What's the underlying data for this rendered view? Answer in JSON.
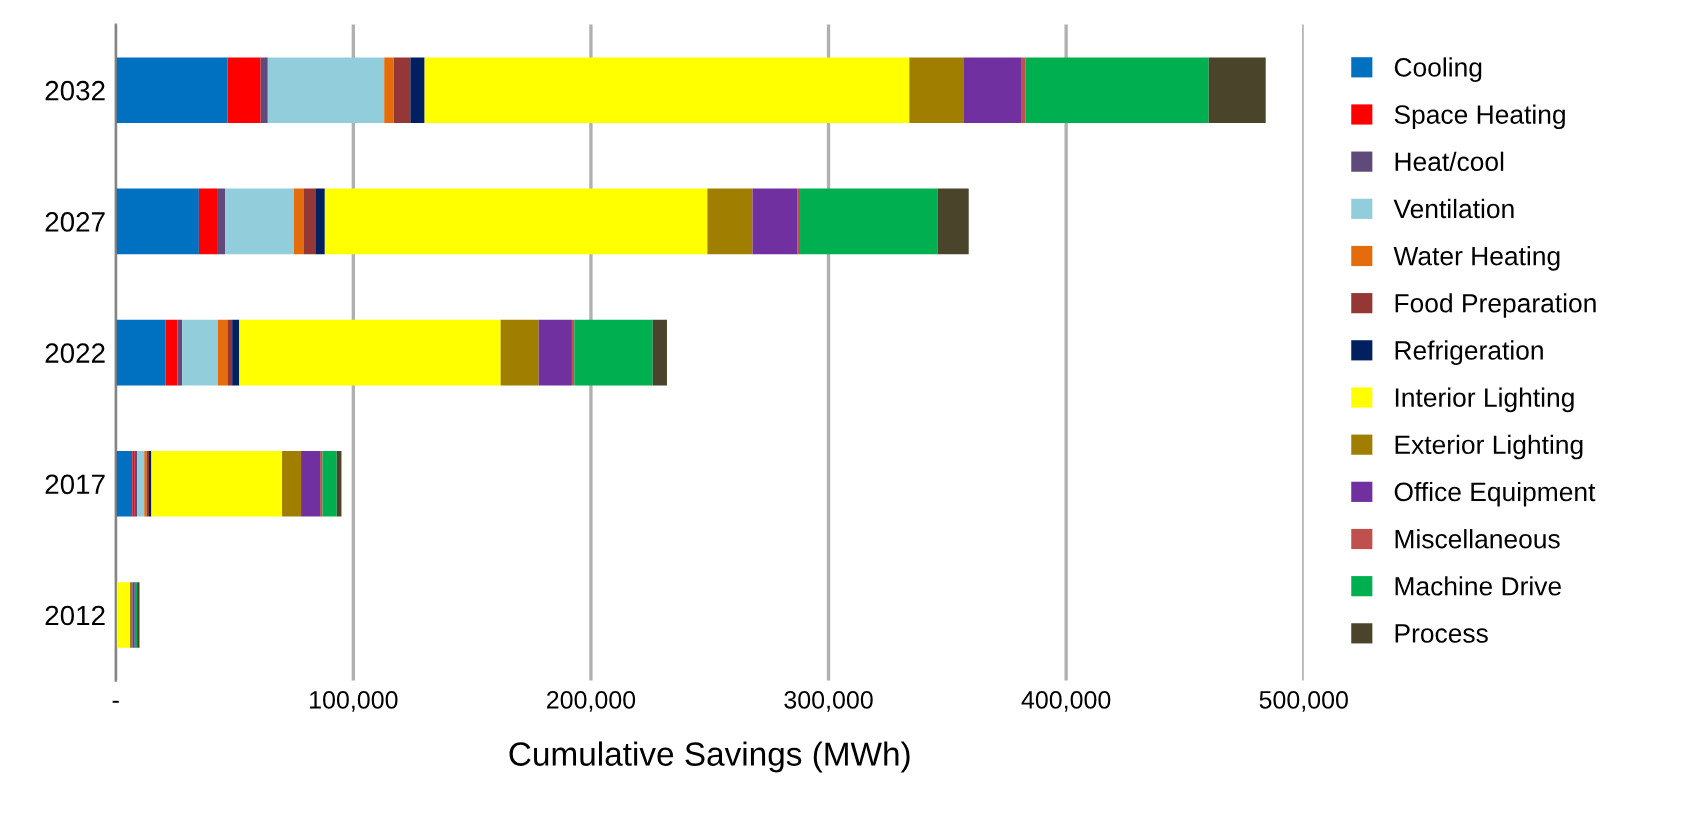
{
  "chart_data": {
    "type": "bar",
    "orientation": "horizontal",
    "stacked": true,
    "xlabel": "Cumulative Savings (MWh)",
    "categories": [
      "2032",
      "2027",
      "2022",
      "2017",
      "2012"
    ],
    "xlim": [
      0,
      500000
    ],
    "xticks": [
      {
        "value": 0,
        "label": "-"
      },
      {
        "value": 100000,
        "label": "100,000"
      },
      {
        "value": 200000,
        "label": "200,000"
      },
      {
        "value": 300000,
        "label": "300,000"
      },
      {
        "value": 400000,
        "label": "400,000"
      },
      {
        "value": 500000,
        "label": "500,000"
      }
    ],
    "grid": "x",
    "legend": "right",
    "series": [
      {
        "name": "Cooling",
        "color": "#0070c0",
        "values": [
          47000,
          35000,
          21000,
          7000,
          null
        ]
      },
      {
        "name": "Space Heating",
        "color": "#ff0000",
        "values": [
          14000,
          8000,
          5000,
          1000,
          null
        ]
      },
      {
        "name": "Heat/cool",
        "color": "#604a7b",
        "values": [
          3000,
          3000,
          2000,
          1000,
          null
        ]
      },
      {
        "name": "Ventilation",
        "color": "#92cddc",
        "values": [
          49000,
          29000,
          15000,
          3000,
          null
        ]
      },
      {
        "name": "Water Heating",
        "color": "#e46c0a",
        "values": [
          4000,
          4000,
          4000,
          1000,
          null
        ]
      },
      {
        "name": "Food Preparation",
        "color": "#953735",
        "values": [
          7000,
          5000,
          2000,
          1000,
          null
        ]
      },
      {
        "name": "Refrigeration",
        "color": "#002060",
        "values": [
          6000,
          4000,
          3000,
          1000,
          null
        ]
      },
      {
        "name": "Interior Lighting",
        "color": "#ffff00",
        "values": [
          204000,
          161000,
          110000,
          55000,
          6000
        ]
      },
      {
        "name": "Exterior Lighting",
        "color": "#a07f00",
        "values": [
          23000,
          19000,
          16000,
          8000,
          1000
        ]
      },
      {
        "name": "Office Equipment",
        "color": "#7030a0",
        "values": [
          24000,
          19000,
          14000,
          8000,
          1000
        ]
      },
      {
        "name": "Miscellaneous",
        "color": "#c0504d",
        "values": [
          2000,
          1000,
          1000,
          1000,
          null
        ]
      },
      {
        "name": "Machine Drive",
        "color": "#00b050",
        "values": [
          77000,
          58000,
          33000,
          6000,
          1000
        ]
      },
      {
        "name": "Process",
        "color": "#4a452a",
        "values": [
          24000,
          13000,
          6000,
          2000,
          1000
        ]
      }
    ]
  }
}
